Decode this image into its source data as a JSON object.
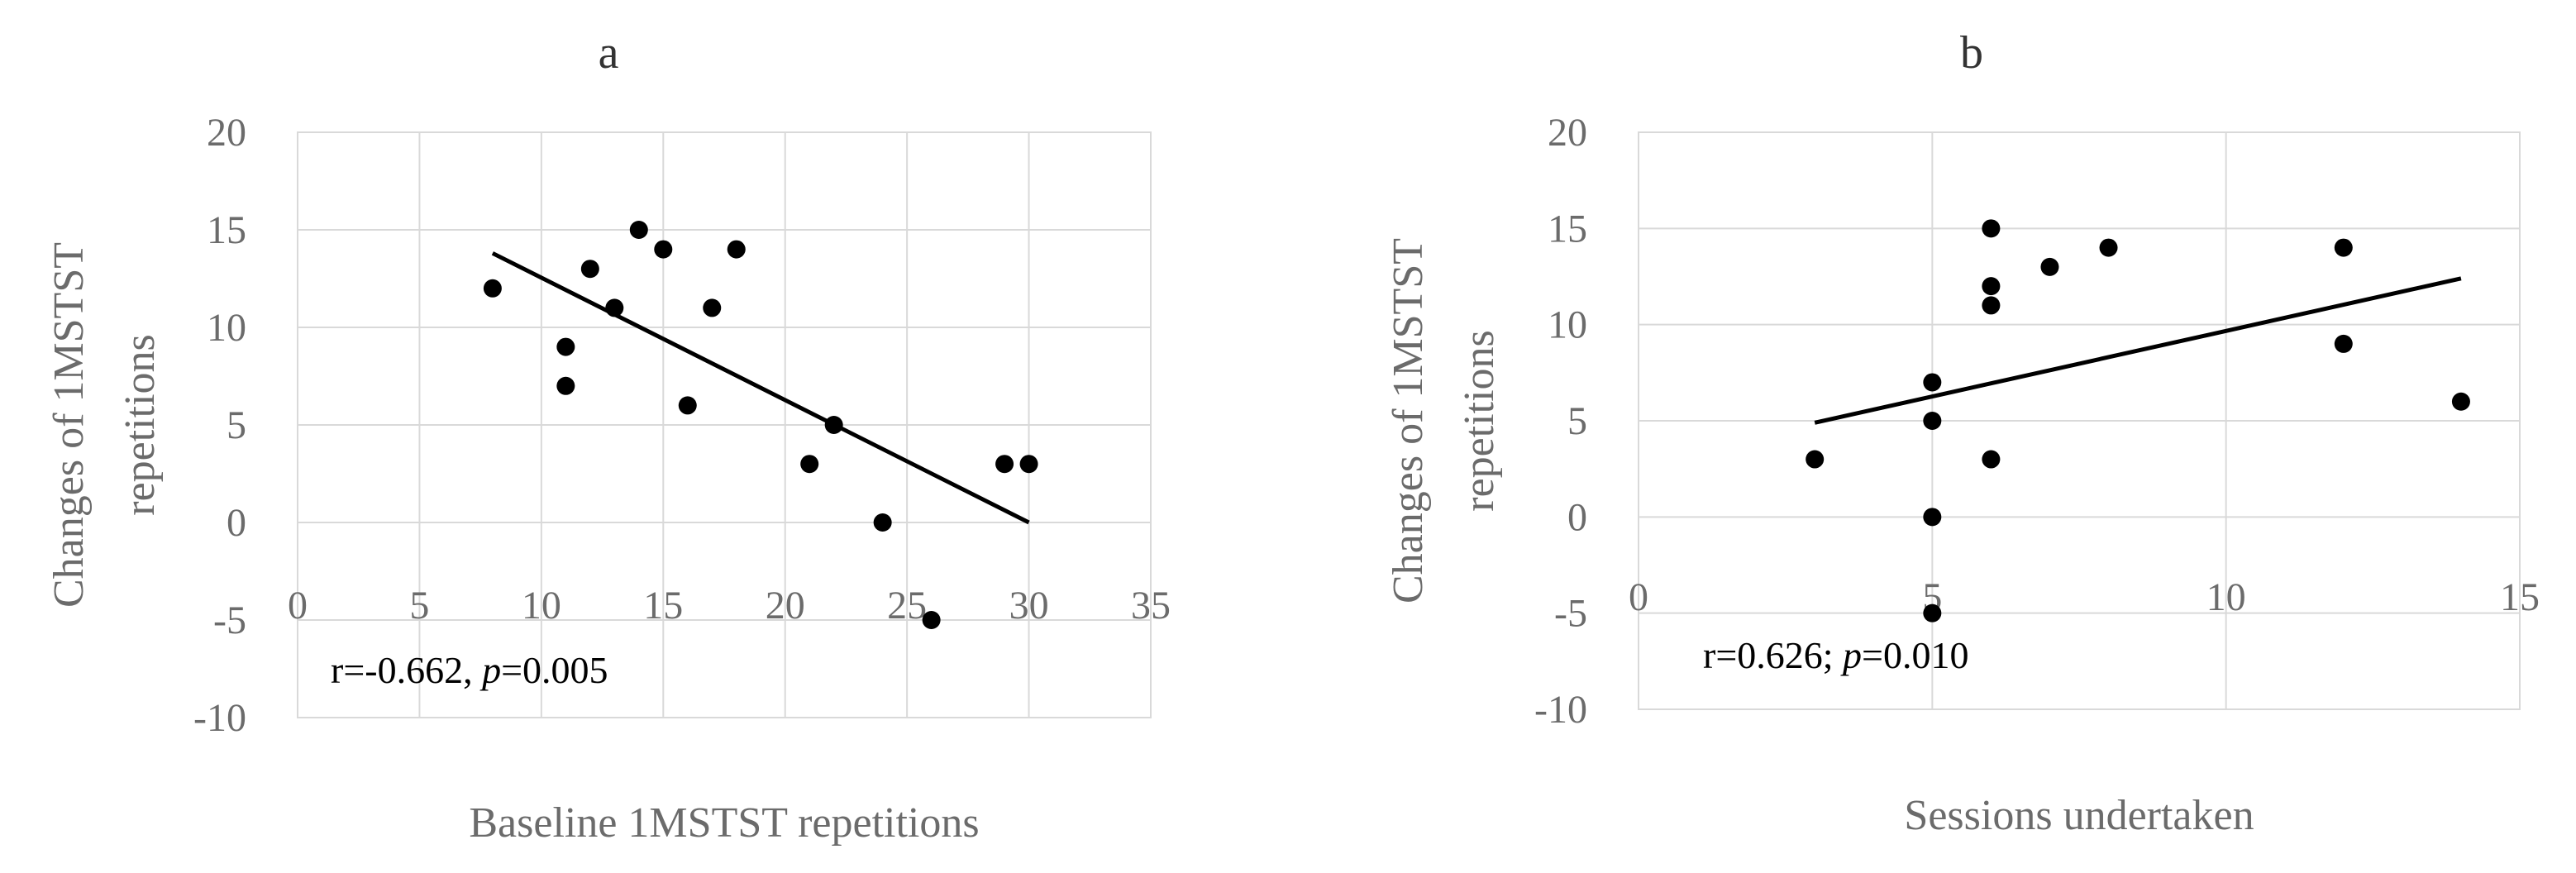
{
  "chart_data": [
    {
      "type": "scatter",
      "title": "a",
      "xlabel": "Baseline 1MSTST repetitions",
      "ylabel": "Changes of 1MSTST repetitions",
      "xlim": [
        0,
        35
      ],
      "ylim": [
        -10,
        20
      ],
      "xticks": [
        0,
        5,
        10,
        15,
        20,
        25,
        30,
        35
      ],
      "yticks": [
        20,
        15,
        10,
        5,
        0,
        -5,
        -10
      ],
      "grid": true,
      "points": [
        {
          "x": 8,
          "y": 12
        },
        {
          "x": 11,
          "y": 9
        },
        {
          "x": 11,
          "y": 7
        },
        {
          "x": 12,
          "y": 13
        },
        {
          "x": 13,
          "y": 11
        },
        {
          "x": 14,
          "y": 15
        },
        {
          "x": 15,
          "y": 14
        },
        {
          "x": 16,
          "y": 6
        },
        {
          "x": 17,
          "y": 11
        },
        {
          "x": 18,
          "y": 14
        },
        {
          "x": 21,
          "y": 3
        },
        {
          "x": 22,
          "y": 5
        },
        {
          "x": 24,
          "y": 0
        },
        {
          "x": 26,
          "y": -5
        },
        {
          "x": 29,
          "y": 3
        },
        {
          "x": 30,
          "y": 3
        }
      ],
      "trendline": [
        {
          "x": 8,
          "y": 13.8
        },
        {
          "x": 30,
          "y": 0
        }
      ],
      "annotation": {
        "prefix": "r=-0.662, ",
        "p_symbol": "p",
        "suffix": "=0.005"
      }
    },
    {
      "type": "scatter",
      "title": "b",
      "xlabel": "Sessions undertaken",
      "ylabel": "Changes of 1MSTST repetitions",
      "xlim": [
        0,
        15
      ],
      "ylim": [
        -10,
        20
      ],
      "xticks": [
        0,
        5,
        10,
        15
      ],
      "yticks": [
        20,
        15,
        10,
        5,
        0,
        -5,
        -10
      ],
      "grid": true,
      "points": [
        {
          "x": 3,
          "y": 3
        },
        {
          "x": 5,
          "y": 7
        },
        {
          "x": 5,
          "y": 5
        },
        {
          "x": 5,
          "y": 0
        },
        {
          "x": 5,
          "y": -5
        },
        {
          "x": 6,
          "y": 15
        },
        {
          "x": 6,
          "y": 12
        },
        {
          "x": 6,
          "y": 11
        },
        {
          "x": 6,
          "y": 3
        },
        {
          "x": 7,
          "y": 13
        },
        {
          "x": 8,
          "y": 14
        },
        {
          "x": 12,
          "y": 14
        },
        {
          "x": 12,
          "y": 9
        },
        {
          "x": 14,
          "y": 6
        }
      ],
      "trendline": [
        {
          "x": 3,
          "y": 4.9
        },
        {
          "x": 14,
          "y": 12.4
        }
      ],
      "annotation": {
        "prefix": "r=0.626; ",
        "p_symbol": "p",
        "suffix": "=0.010"
      }
    }
  ]
}
